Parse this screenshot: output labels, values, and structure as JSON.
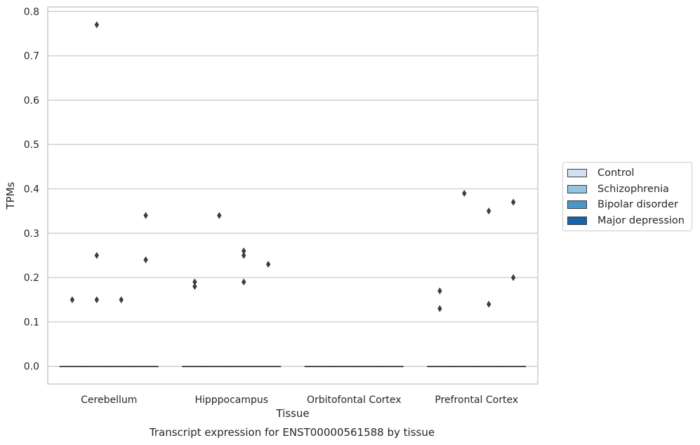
{
  "chart_data": {
    "type": "boxplot",
    "title": "Transcript expression for ENST00000561588 by tissue",
    "xlabel": "Tissue",
    "ylabel": "TPMs",
    "ylim": [
      -0.04,
      0.81
    ],
    "yticks": [
      0.0,
      0.1,
      0.2,
      0.3,
      0.4,
      0.5,
      0.6,
      0.7,
      0.8
    ],
    "ytick_labels": [
      "0.0",
      "0.1",
      "0.2",
      "0.3",
      "0.4",
      "0.5",
      "0.6",
      "0.7",
      "0.8"
    ],
    "grid": true,
    "categories": [
      "Cerebellum",
      "Hipppocampus",
      "Orbitofontal Cortex",
      "Prefrontal Cortex"
    ],
    "series": [
      {
        "name": "Control",
        "color": "#d0e1f2",
        "box": [
          [
            0,
            0,
            0,
            0,
            0
          ],
          [
            0,
            0,
            0,
            0,
            0
          ],
          [
            0,
            0,
            0,
            0,
            0
          ],
          [
            0,
            0,
            0,
            0,
            0
          ]
        ],
        "outliers": [
          [
            0.15
          ],
          [
            0.18,
            0.19
          ],
          [],
          [
            0.17,
            0.13
          ]
        ]
      },
      {
        "name": "Schizophrenia",
        "color": "#94c4df",
        "box": [
          [
            0,
            0,
            0,
            0,
            0
          ],
          [
            0,
            0,
            0,
            0,
            0
          ],
          [
            0,
            0,
            0,
            0,
            0
          ],
          [
            0,
            0,
            0,
            0,
            0
          ]
        ],
        "outliers": [
          [
            0.77,
            0.25,
            0.15
          ],
          [
            0.34
          ],
          [],
          [
            0.39
          ]
        ]
      },
      {
        "name": "Bipolar disorder",
        "color": "#4a98c9",
        "box": [
          [
            0,
            0,
            0,
            0,
            0
          ],
          [
            0,
            0,
            0,
            0,
            0
          ],
          [
            0,
            0,
            0,
            0,
            0
          ],
          [
            0,
            0,
            0,
            0,
            0
          ]
        ],
        "outliers": [
          [
            0.15
          ],
          [
            0.26,
            0.25,
            0.19
          ],
          [],
          [
            0.35,
            0.14
          ]
        ]
      },
      {
        "name": "Major depression",
        "color": "#1764ab",
        "box": [
          [
            0,
            0,
            0,
            0,
            0
          ],
          [
            0,
            0,
            0,
            0,
            0
          ],
          [
            0,
            0,
            0,
            0,
            0
          ],
          [
            0,
            0,
            0,
            0,
            0
          ]
        ],
        "outliers": [
          [
            0.34,
            0.24
          ],
          [
            0.23
          ],
          [],
          [
            0.37,
            0.2
          ]
        ]
      }
    ],
    "legend_position": "right-outside"
  }
}
